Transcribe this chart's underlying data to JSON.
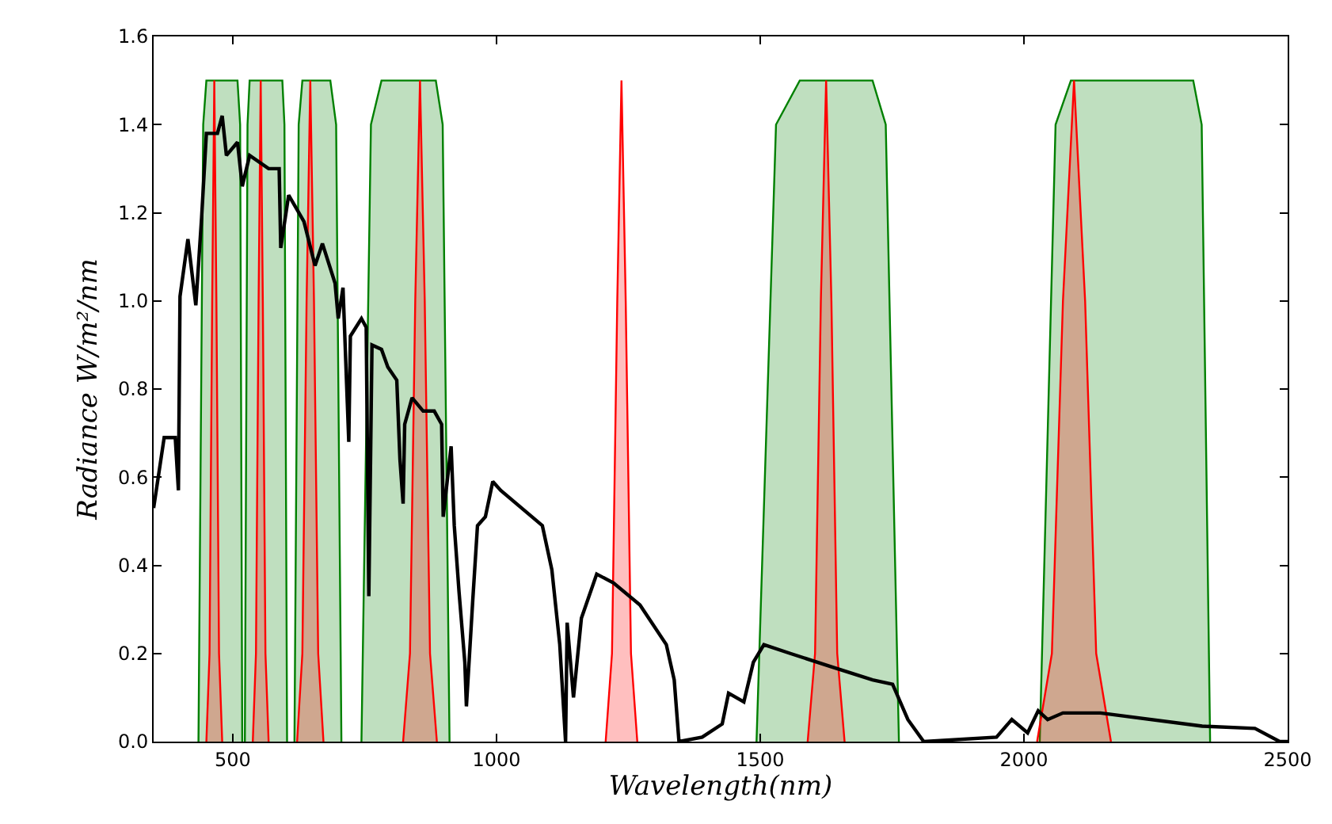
{
  "chart_data": {
    "type": "line",
    "xlabel": "Wavelength(nm)",
    "ylabel": "Radiance W/m²/nm",
    "xlim": [
      350,
      2500
    ],
    "ylim": [
      0,
      1.6
    ],
    "xticks": [
      500,
      1000,
      1500,
      2000,
      2500
    ],
    "yticks": [
      {
        "value": 0,
        "label": "0.0"
      },
      {
        "value": 0.2,
        "label": "0.2"
      },
      {
        "value": 0.4,
        "label": "0.4"
      },
      {
        "value": 0.6,
        "label": "0.6"
      },
      {
        "value": 0.8,
        "label": "0.8"
      },
      {
        "value": 1.0,
        "label": "1.0"
      },
      {
        "value": 1.2,
        "label": "1.2"
      },
      {
        "value": 1.4,
        "label": "1.4"
      },
      {
        "value": 1.6,
        "label": "1.6"
      }
    ],
    "series": [
      {
        "type": "area",
        "color": "#008000",
        "x": [
          435,
          444,
          450,
          509,
          514,
          518
        ],
        "values": [
          0,
          1.4,
          1.5,
          1.5,
          1.4,
          0
        ]
      },
      {
        "type": "area",
        "color": "#008000",
        "x": [
          523,
          528,
          532,
          594,
          598,
          603
        ],
        "values": [
          0,
          1.4,
          1.5,
          1.5,
          1.4,
          0
        ]
      },
      {
        "type": "area",
        "color": "#008000",
        "x": [
          617,
          625,
          632,
          685,
          696,
          706
        ],
        "values": [
          0,
          1.4,
          1.5,
          1.5,
          1.4,
          0
        ]
      },
      {
        "type": "area",
        "color": "#008000",
        "x": [
          744,
          762,
          782,
          885,
          898,
          911
        ],
        "values": [
          0,
          1.4,
          1.5,
          1.5,
          1.4,
          0
        ]
      },
      {
        "type": "area",
        "color": "#008000",
        "x": [
          1493,
          1530,
          1575,
          1713,
          1738,
          1763
        ],
        "values": [
          0,
          1.4,
          1.5,
          1.5,
          1.4,
          0
        ]
      },
      {
        "type": "area",
        "color": "#008000",
        "x": [
          2030,
          2060,
          2089,
          2321,
          2337,
          2353
        ],
        "values": [
          0,
          1.4,
          1.5,
          1.5,
          1.4,
          0
        ]
      },
      {
        "type": "area",
        "color": "#ff0000",
        "x": [
          450,
          456,
          461,
          465,
          469,
          474,
          480
        ],
        "values": [
          0,
          0.2,
          1.0,
          1.5,
          1.0,
          0.2,
          0
        ]
      },
      {
        "type": "area",
        "color": "#ff0000",
        "x": [
          538,
          544,
          549,
          553,
          557,
          562,
          568
        ],
        "values": [
          0,
          0.2,
          1.0,
          1.5,
          1.0,
          0.2,
          0
        ]
      },
      {
        "type": "area",
        "color": "#ff0000",
        "x": [
          622,
          632,
          640,
          647,
          654,
          662,
          672
        ],
        "values": [
          0,
          0.2,
          1.0,
          1.5,
          1.0,
          0.2,
          0
        ]
      },
      {
        "type": "area",
        "color": "#ff0000",
        "x": [
          823,
          836,
          846,
          855,
          864,
          874,
          887
        ],
        "values": [
          0,
          0.2,
          1.0,
          1.5,
          1.0,
          0.2,
          0
        ]
      },
      {
        "type": "area",
        "color": "#ff0000",
        "x": [
          1207,
          1219,
          1229,
          1237,
          1245,
          1255,
          1267
        ],
        "values": [
          0,
          0.2,
          1.0,
          1.5,
          1.0,
          0.2,
          0
        ]
      },
      {
        "type": "area",
        "color": "#ff0000",
        "x": [
          1590,
          1604,
          1615,
          1625,
          1635,
          1646,
          1660
        ],
        "values": [
          0,
          0.2,
          1.0,
          1.5,
          1.0,
          0.2,
          0
        ]
      },
      {
        "type": "area",
        "color": "#ff0000",
        "x": [
          2025,
          2053,
          2074,
          2095,
          2116,
          2137,
          2165
        ],
        "values": [
          0,
          0.2,
          1.0,
          1.5,
          1.0,
          0.2,
          0
        ]
      },
      {
        "color": "#000000",
        "x": [
          350,
          370,
          391,
          397,
          400,
          415,
          430,
          441,
          450,
          471,
          480,
          488,
          509,
          518,
          532,
          568,
          588,
          591,
          606,
          635,
          656,
          670,
          694,
          700,
          709,
          720,
          723,
          744,
          753,
          758,
          764,
          782,
          794,
          811,
          817,
          823,
          826,
          840,
          861,
          882,
          896,
          899,
          914,
          920,
          929,
          940,
          943,
          955,
          964,
          979,
          993,
          1008,
          1087,
          1105,
          1120,
          1131,
          1134,
          1146,
          1161,
          1190,
          1222,
          1272,
          1322,
          1337,
          1346,
          1390,
          1428,
          1440,
          1469,
          1487,
          1507,
          1557,
          1634,
          1713,
          1751,
          1780,
          1810,
          1948,
          1977,
          2007,
          2027,
          2045,
          2074,
          2145,
          2338,
          2438,
          2485,
          2500
        ],
        "values": [
          0.53,
          0.69,
          0.69,
          0.57,
          1.01,
          1.14,
          0.99,
          1.19,
          1.38,
          1.38,
          1.42,
          1.33,
          1.36,
          1.26,
          1.33,
          1.3,
          1.3,
          1.12,
          1.24,
          1.18,
          1.08,
          1.13,
          1.04,
          0.96,
          1.03,
          0.68,
          0.92,
          0.96,
          0.94,
          0.33,
          0.9,
          0.89,
          0.85,
          0.82,
          0.64,
          0.54,
          0.72,
          0.78,
          0.75,
          0.75,
          0.72,
          0.51,
          0.67,
          0.49,
          0.34,
          0.18,
          0.08,
          0.32,
          0.49,
          0.51,
          0.59,
          0.57,
          0.49,
          0.39,
          0.22,
          0.0,
          0.27,
          0.1,
          0.28,
          0.38,
          0.36,
          0.31,
          0.22,
          0.14,
          0.0,
          0.01,
          0.04,
          0.11,
          0.09,
          0.18,
          0.22,
          0.2,
          0.17,
          0.14,
          0.13,
          0.05,
          0.0,
          0.01,
          0.05,
          0.02,
          0.07,
          0.05,
          0.065,
          0.065,
          0.035,
          0.03,
          0.0,
          0.0
        ]
      }
    ]
  }
}
